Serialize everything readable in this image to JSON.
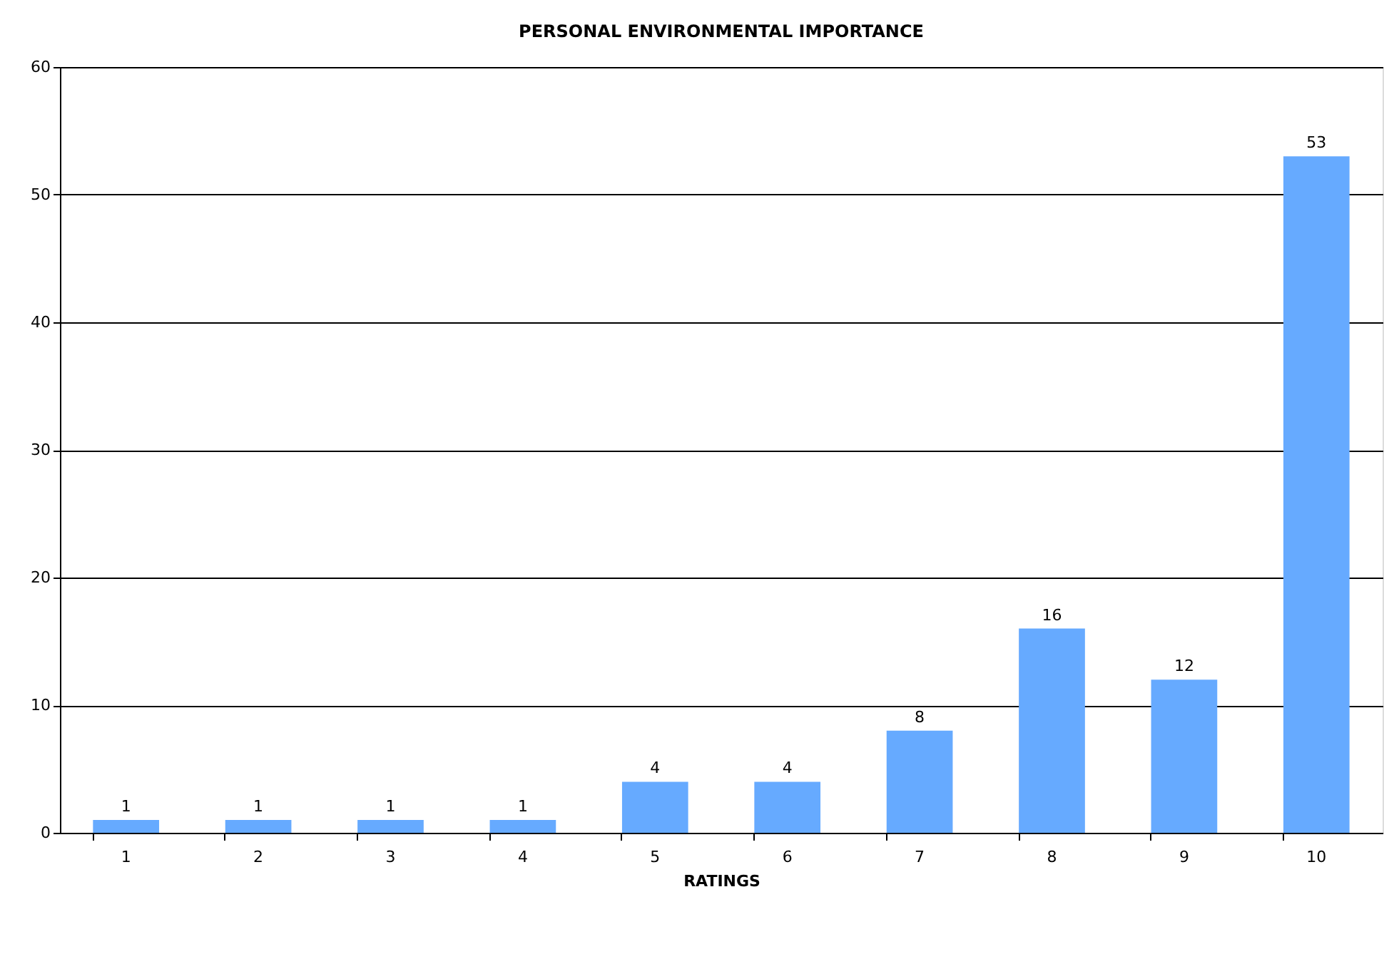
{
  "chart_data": {
    "type": "bar",
    "title": "PERSONAL ENVIRONMENTAL IMPORTANCE",
    "xlabel": "RATINGS",
    "categories": [
      "1",
      "2",
      "3",
      "4",
      "5",
      "6",
      "7",
      "8",
      "9",
      "10"
    ],
    "values": [
      1,
      1,
      1,
      1,
      4,
      4,
      8,
      16,
      12,
      53
    ],
    "color": "#66aaff",
    "ylim": [
      0,
      60
    ],
    "yticks": [
      0,
      10,
      20,
      30,
      40,
      50,
      60
    ],
    "grid": "y",
    "data_labels": true
  }
}
